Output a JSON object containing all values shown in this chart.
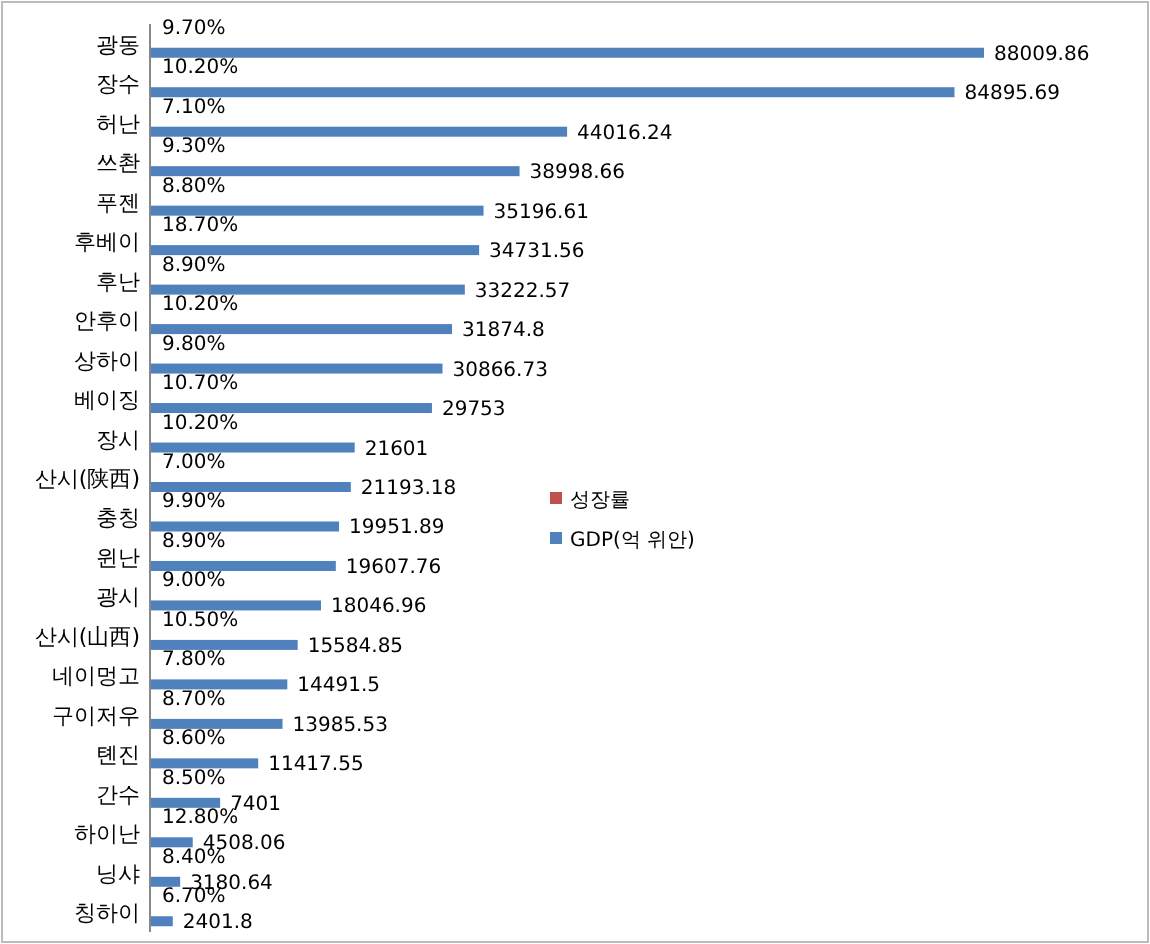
{
  "chart_data": {
    "type": "bar",
    "orientation": "horizontal",
    "legend": "right",
    "categories": [
      "광동",
      "장수",
      "허난",
      "쓰촨",
      "푸젠",
      "후베이",
      "후난",
      "안후이",
      "상하이",
      "베이징",
      "장시",
      "산시(陕西)",
      "충칭",
      "윈난",
      "광시",
      "산시(山西)",
      "네이멍고",
      "구이저우",
      "톈진",
      "간수",
      "하이난",
      "닝샤",
      "칭하이"
    ],
    "series": [
      {
        "name": "성장률",
        "color": "#c0504d",
        "values": [
          9.7,
          10.2,
          7.1,
          9.3,
          8.8,
          18.7,
          8.9,
          10.2,
          9.8,
          10.7,
          10.2,
          7.0,
          9.9,
          8.9,
          9.0,
          10.5,
          7.8,
          8.7,
          8.6,
          8.5,
          12.8,
          8.4,
          6.7
        ],
        "value_labels": [
          "9.70%",
          "10.20%",
          "7.10%",
          "9.30%",
          "8.80%",
          "18.70%",
          "8.90%",
          "10.20%",
          "9.80%",
          "10.70%",
          "10.20%",
          "7.00%",
          "9.90%",
          "8.90%",
          "9.00%",
          "10.50%",
          "7.80%",
          "8.70%",
          "8.60%",
          "8.50%",
          "12.80%",
          "8.40%",
          "6.70%"
        ]
      },
      {
        "name": "GDP(억 위안)",
        "color": "#4f81bd",
        "values": [
          88009.86,
          84895.69,
          44016.24,
          38998.66,
          35196.61,
          34731.56,
          33222.57,
          31874.8,
          30866.73,
          29753,
          21601,
          21193.18,
          19951.89,
          19607.76,
          18046.96,
          15584.85,
          14491.5,
          13985.53,
          11417.55,
          7401,
          4508.06,
          3180.64,
          2401.8
        ],
        "value_labels": [
          "88009.86",
          "84895.69",
          "44016.24",
          "38998.66",
          "35196.61",
          "34731.56",
          "33222.57",
          "31874.8",
          "30866.73",
          "29753",
          "21601",
          "21193.18",
          "19951.89",
          "19607.76",
          "18046.96",
          "15584.85",
          "14491.5",
          "13985.53",
          "11417.55",
          "7401",
          "4508.06",
          "3180.64",
          "2401.8"
        ]
      }
    ]
  }
}
